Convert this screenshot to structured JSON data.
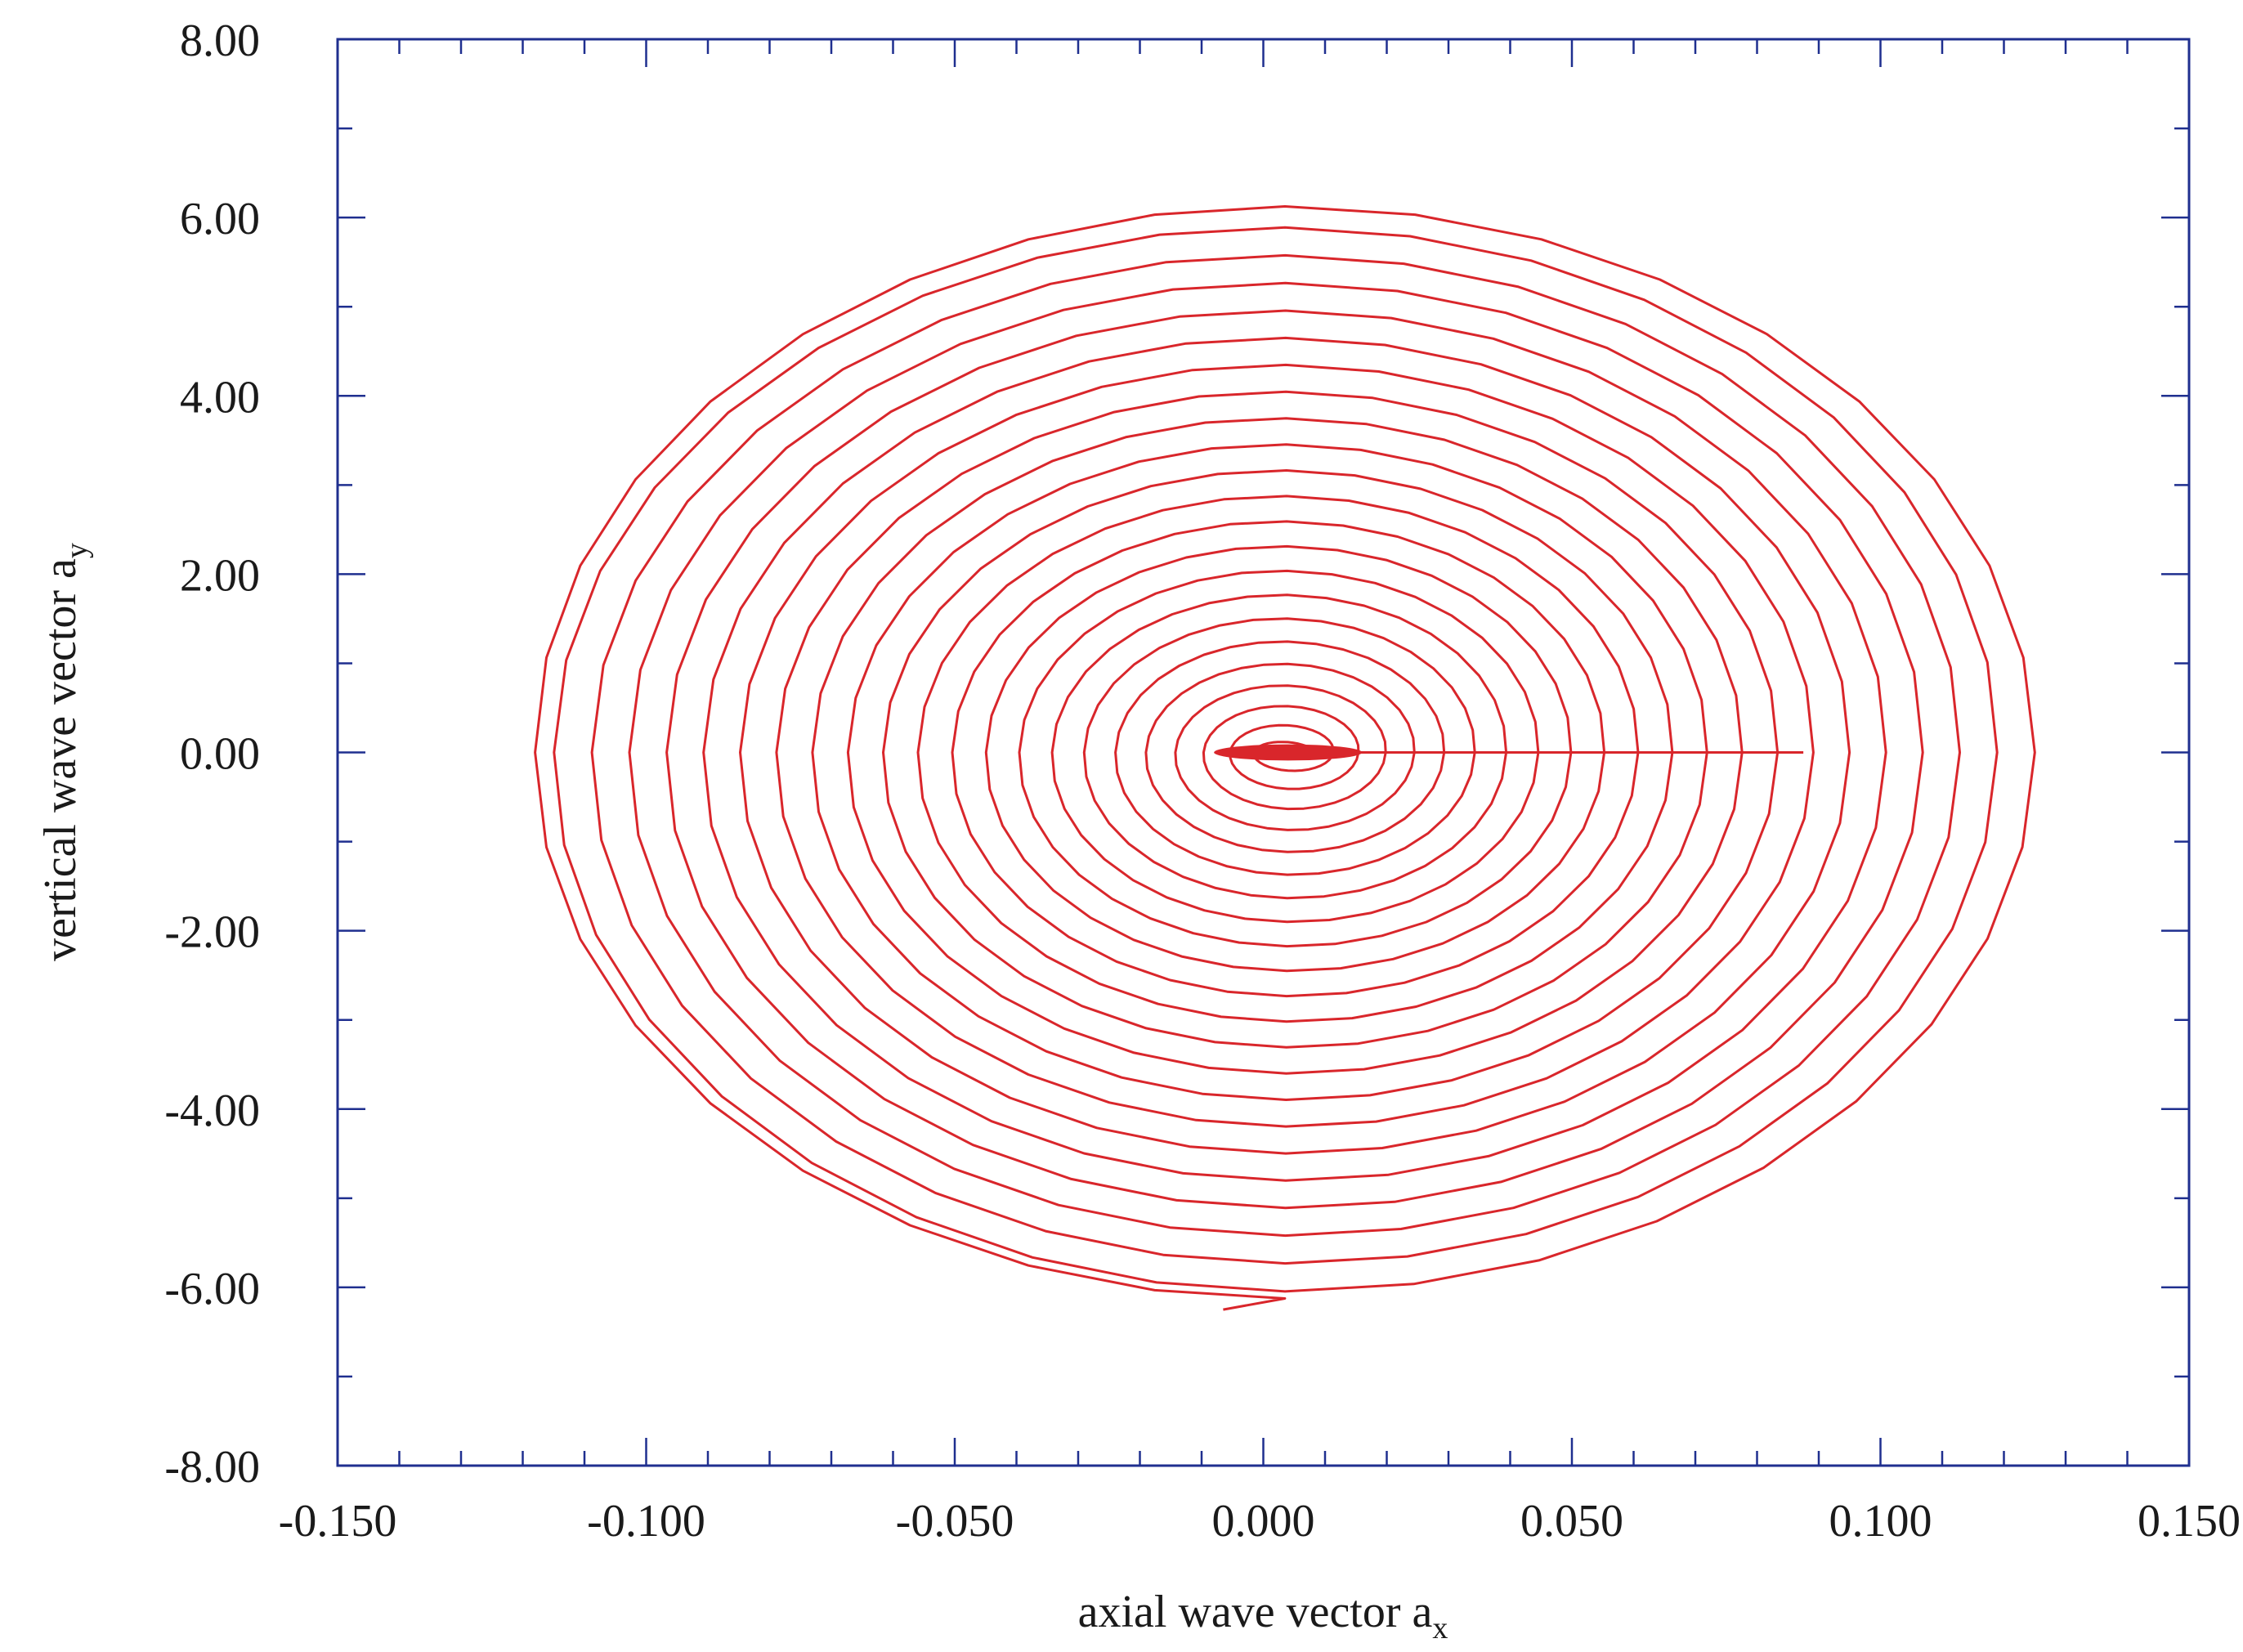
{
  "chart_data": {
    "type": "line",
    "xlabel": "axial wave vector a",
    "xlabel_subscript": "x",
    "ylabel": "vertical wave vector a",
    "ylabel_subscript": "y",
    "xlim": [
      -0.15,
      0.15
    ],
    "ylim": [
      -8.0,
      8.0
    ],
    "x_ticks": [
      "-0.150",
      "-0.100",
      "-0.050",
      "0.000",
      "0.050",
      "0.100",
      "0.150"
    ],
    "y_ticks": [
      "8.00",
      "6.00",
      "4.00",
      "2.00",
      "0.00",
      "-2.00",
      "-4.00",
      "-6.00",
      "-8.00"
    ],
    "grid": false,
    "legend": "none",
    "colors": {
      "axis": "#1f2f8f",
      "series": "#d9262b",
      "text": "#1a1a1a"
    },
    "series": [
      {
        "spiral": {
          "start": [
            0.0875,
            0.0
          ],
          "end": [
            -0.0065,
            -6.25
          ],
          "center": [
            0.0,
            0.0
          ],
          "turns": 22,
          "points_per_turn": 36,
          "outer_turn": {
            "x_right": 0.125,
            "x_left": -0.118,
            "y_top": 6.0,
            "y_bottom": -6.25
          }
        },
        "samples": [
          [
            0.0875,
            0.0
          ],
          [
            0.077,
            0.4
          ],
          [
            0.047,
            0.68
          ],
          [
            0.012,
            0.78
          ],
          [
            -0.026,
            0.7
          ],
          [
            -0.058,
            0.42
          ],
          [
            -0.072,
            0.0
          ],
          [
            -0.063,
            -0.52
          ],
          [
            -0.032,
            -0.95
          ],
          [
            0.01,
            -1.08
          ],
          [
            0.048,
            -0.92
          ],
          [
            0.07,
            -0.48
          ],
          [
            0.079,
            0.0
          ],
          [
            0.103,
            2.0
          ],
          [
            0.048,
            4.1
          ],
          [
            0.0,
            4.45
          ],
          [
            -0.07,
            3.8
          ],
          [
            -0.108,
            1.5
          ],
          [
            -0.11,
            -1.5
          ],
          [
            -0.08,
            -4.0
          ],
          [
            0.0,
            -5.0
          ],
          [
            0.08,
            -3.9
          ],
          [
            0.115,
            0.0
          ],
          [
            0.108,
            2.8
          ],
          [
            0.045,
            5.6
          ],
          [
            0.002,
            6.0
          ],
          [
            -0.04,
            5.8
          ],
          [
            -0.085,
            3.8
          ],
          [
            -0.111,
            2.0
          ],
          [
            -0.118,
            0.0
          ],
          [
            -0.113,
            -1.5
          ],
          [
            -0.101,
            -3.0
          ],
          [
            -0.09,
            -3.8
          ],
          [
            -0.06,
            -5.2
          ],
          [
            -0.02,
            -5.75
          ],
          [
            0.02,
            -5.7
          ],
          [
            0.06,
            -5.2
          ],
          [
            0.08,
            -4.8
          ],
          [
            0.102,
            -3.3
          ],
          [
            0.115,
            -1.5
          ],
          [
            0.124,
            0.0
          ],
          [
            0.122,
            -1.7
          ],
          [
            0.11,
            -3.3
          ],
          [
            0.09,
            -4.6
          ],
          [
            0.06,
            -5.5
          ],
          [
            0.04,
            -5.95
          ],
          [
            0.018,
            -6.18
          ],
          [
            -0.0065,
            -6.25
          ]
        ]
      }
    ]
  }
}
